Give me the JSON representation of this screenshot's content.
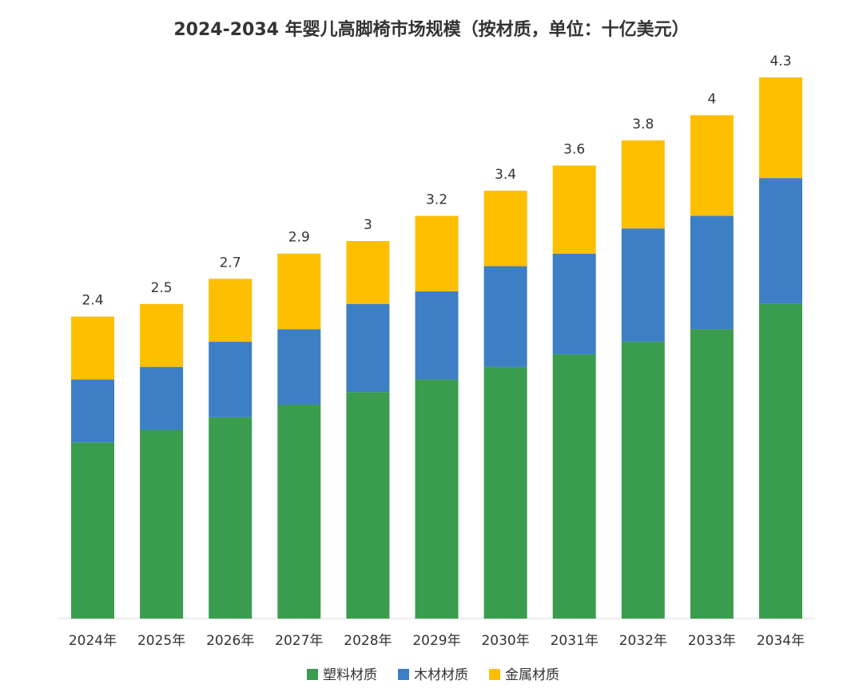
{
  "chart_data": {
    "type": "stacked_bar",
    "title": "2024-2034 年婴儿高脚椅市场规模（按材质，单位：十亿美元）",
    "categories": [
      "2024年",
      "2025年",
      "2026年",
      "2027年",
      "2028年",
      "2029年",
      "2030年",
      "2031年",
      "2032年",
      "2033年",
      "2034年"
    ],
    "series": [
      {
        "name": "塑料材质",
        "color": "#3a9c4f",
        "values": [
          1.4,
          1.5,
          1.6,
          1.7,
          1.8,
          1.9,
          2.0,
          2.1,
          2.2,
          2.3,
          2.5
        ]
      },
      {
        "name": "木材材质",
        "color": "#3d7fc4",
        "values": [
          0.5,
          0.5,
          0.6,
          0.6,
          0.7,
          0.7,
          0.8,
          0.8,
          0.9,
          0.9,
          1.0
        ]
      },
      {
        "name": "金属材质",
        "color": "#fdbf00",
        "values": [
          0.5,
          0.5,
          0.5,
          0.6,
          0.5,
          0.6,
          0.6,
          0.7,
          0.7,
          0.8,
          0.8
        ]
      }
    ],
    "totals": [
      2.4,
      2.5,
      2.7,
      2.9,
      3,
      3.2,
      3.4,
      3.6,
      3.8,
      4,
      4.3
    ],
    "legend": "bottom"
  }
}
